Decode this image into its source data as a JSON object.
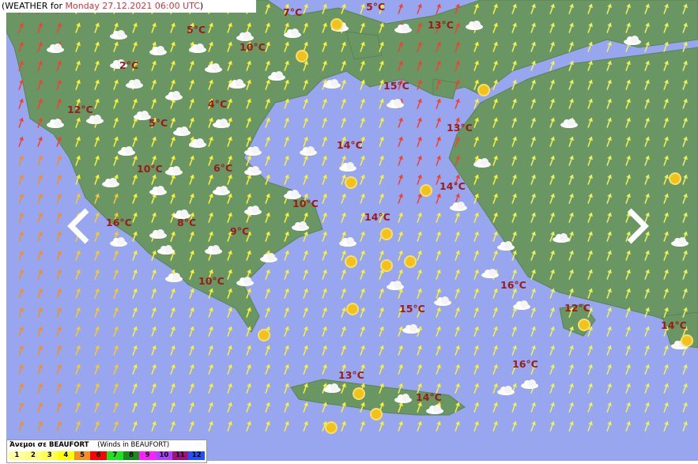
{
  "header": {
    "prefix": "(WEATHER for ",
    "date": "Monday 27.12.2021 06:00 UTC",
    "suffix": ")"
  },
  "temperatures": [
    "7°C",
    "5°C",
    "5°C",
    "13°C",
    "10°C",
    "2°C",
    "15°C",
    "4°C",
    "12°C",
    "5°C",
    "13°C",
    "14°C",
    "10°C",
    "6°C",
    "14°C",
    "10°C",
    "16°C",
    "8°C",
    "9°C",
    "14°C",
    "16°C",
    "10°C",
    "15°C",
    "12°C",
    "14°C",
    "13°C",
    "16°C",
    "14°C"
  ],
  "legend": {
    "title": "Άνεμοι σε BEAUFORT",
    "subtitle": "(Winds in BEAUFORT)",
    "levels": [
      {
        "label": "1",
        "color": "#ffffa0"
      },
      {
        "label": "2",
        "color": "#ffff80"
      },
      {
        "label": "3",
        "color": "#ffff50"
      },
      {
        "label": "4",
        "color": "#ffff00"
      },
      {
        "label": "5",
        "color": "#f09020"
      },
      {
        "label": "6",
        "color": "#ff0000"
      },
      {
        "label": "7",
        "color": "#20e020"
      },
      {
        "label": "8",
        "color": "#1a8a1a"
      },
      {
        "label": "9",
        "color": "#ff20ff"
      },
      {
        "label": "10",
        "color": "#b040ff"
      },
      {
        "label": "11",
        "color": "#a01080"
      },
      {
        "label": "12",
        "color": "#2050ff"
      }
    ]
  },
  "colors": {
    "sea": "#97a6ee",
    "land": "#6a9663",
    "temp_text": "#9b1a1a"
  },
  "icons": [
    "cloud-icon",
    "sun-icon",
    "wind-arrow-icon",
    "chevron-left-icon",
    "chevron-right-icon"
  ]
}
